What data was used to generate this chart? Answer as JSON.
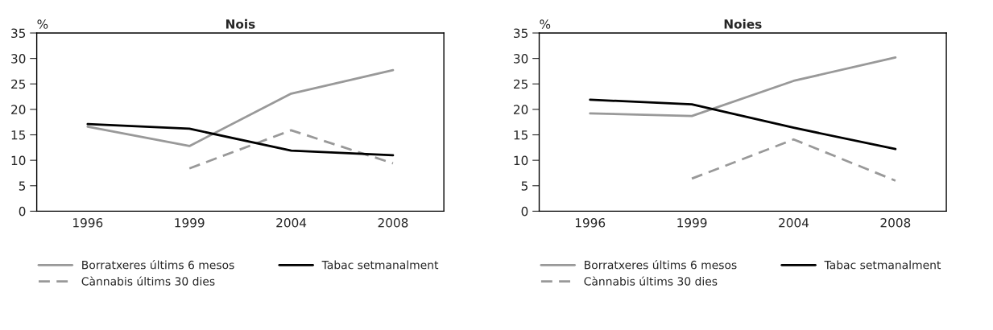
{
  "chart_data": [
    {
      "type": "line",
      "title": "Nois",
      "ylabel": "%",
      "categories": [
        "1996",
        "1999",
        "2004",
        "2008"
      ],
      "ylim": [
        0,
        35
      ],
      "yticks": [
        0,
        5,
        10,
        15,
        20,
        25,
        30,
        35
      ],
      "grid": false,
      "legend": "bottom",
      "marker": "none",
      "series": [
        {
          "name": "Borratxeres últims 6 mesos",
          "color": "#999999",
          "line_style": "solid",
          "values": [
            16.6,
            12.8,
            23.1,
            27.7
          ]
        },
        {
          "name": "Cànnabis últims 30 dies",
          "color": "#999999",
          "line_style": "dashed",
          "values": [
            null,
            8.4,
            15.9,
            9.4
          ]
        },
        {
          "name": "Tabac setmanalment",
          "color": "#000000",
          "line_style": "solid",
          "values": [
            17.1,
            16.2,
            11.9,
            11.0
          ]
        }
      ]
    },
    {
      "type": "line",
      "title": "Noies",
      "ylabel": "%",
      "categories": [
        "1996",
        "1999",
        "2004",
        "2008"
      ],
      "ylim": [
        0,
        35
      ],
      "yticks": [
        0,
        5,
        10,
        15,
        20,
        25,
        30,
        35
      ],
      "grid": false,
      "legend": "bottom",
      "marker": "none",
      "series": [
        {
          "name": "Borratxeres últims 6 mesos",
          "color": "#999999",
          "line_style": "solid",
          "values": [
            19.2,
            18.7,
            25.6,
            30.2
          ]
        },
        {
          "name": "Cànnabis últims 30 dies",
          "color": "#999999",
          "line_style": "dashed",
          "values": [
            null,
            6.4,
            14.1,
            6.0
          ]
        },
        {
          "name": "Tabac setmanalment",
          "color": "#000000",
          "line_style": "solid",
          "values": [
            21.9,
            21.0,
            16.4,
            12.2
          ]
        }
      ]
    }
  ]
}
